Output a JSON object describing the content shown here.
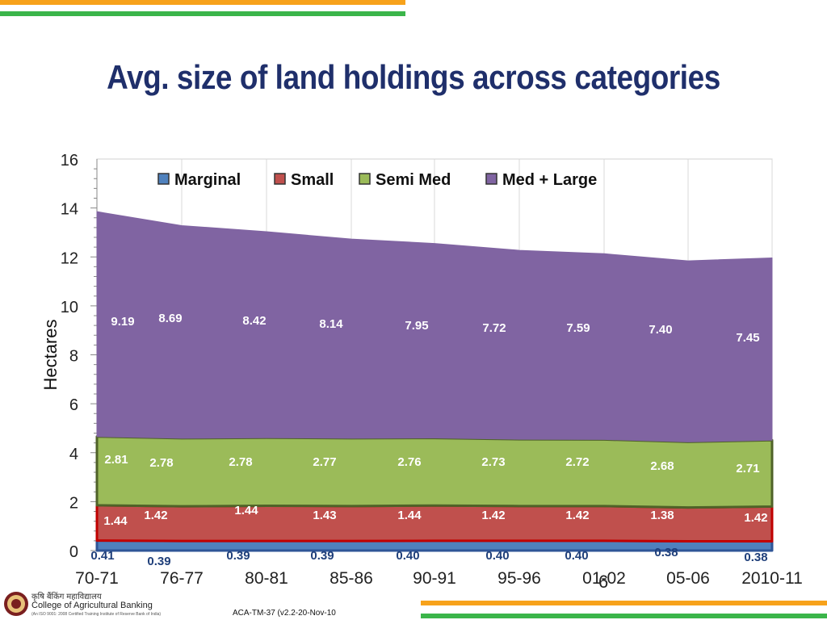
{
  "slide": {
    "title": "Avg. size of land holdings across categories",
    "page_number": "6",
    "doc_code": "ACA-TM-37 (v2.2-20-Nov-10",
    "org_hindi": "कृषि बैंकिंग महाविद्यालय",
    "org_name": "College of Agricultural Banking",
    "org_sub": "(An ISO 9001: 2008 Certified Training Institute of Reserve Bank of India)"
  },
  "colors": {
    "orange_bar": "#f7a21b",
    "green_bar": "#3bb54a",
    "title": "#1f2f6b",
    "marginal": "#4f81bd",
    "small": "#c0504d",
    "semi_med": "#9bbb59",
    "med_large": "#8064a2",
    "marginal_label": "#1f3f7a"
  },
  "chart_data": {
    "type": "area",
    "stacked": true,
    "ylabel": "Hectares",
    "xlabel": "",
    "ylim": [
      0,
      16
    ],
    "yticks": [
      0,
      2,
      4,
      6,
      8,
      10,
      12,
      14,
      16
    ],
    "grid": true,
    "legend_position": "top",
    "categories": [
      "70-71",
      "76-77",
      "80-81",
      "85-86",
      "90-91",
      "95-96",
      "01-02",
      "05-06",
      "2010-11"
    ],
    "series": [
      {
        "name": "Marginal",
        "values": [
          0.41,
          0.39,
          0.39,
          0.39,
          0.4,
          0.4,
          0.4,
          0.38,
          0.38
        ],
        "labels": [
          "0.41",
          "0.39",
          "0.39",
          "0.39",
          "0.40",
          "0.40",
          "0.40",
          "0.38",
          "0.38"
        ]
      },
      {
        "name": "Small",
        "values": [
          1.44,
          1.42,
          1.44,
          1.43,
          1.44,
          1.42,
          1.42,
          1.38,
          1.42
        ],
        "labels": [
          "1.44",
          "1.42",
          "1.44",
          "1.43",
          "1.44",
          "1.42",
          "1.42",
          "1.38",
          "1.42"
        ]
      },
      {
        "name": "Semi Med",
        "values": [
          2.81,
          2.78,
          2.78,
          2.77,
          2.76,
          2.73,
          2.72,
          2.68,
          2.71
        ],
        "labels": [
          "2.81",
          "2.78",
          "2.78",
          "2.77",
          "2.76",
          "2.73",
          "2.72",
          "2.68",
          "2.71"
        ]
      },
      {
        "name": "Med + Large",
        "values": [
          9.19,
          8.69,
          8.42,
          8.14,
          7.95,
          7.72,
          7.59,
          7.4,
          7.45
        ],
        "labels": [
          "9.19",
          "8.69",
          "8.42",
          "8.14",
          "7.95",
          "7.72",
          "7.59",
          "7.40",
          "7.45"
        ]
      }
    ]
  }
}
